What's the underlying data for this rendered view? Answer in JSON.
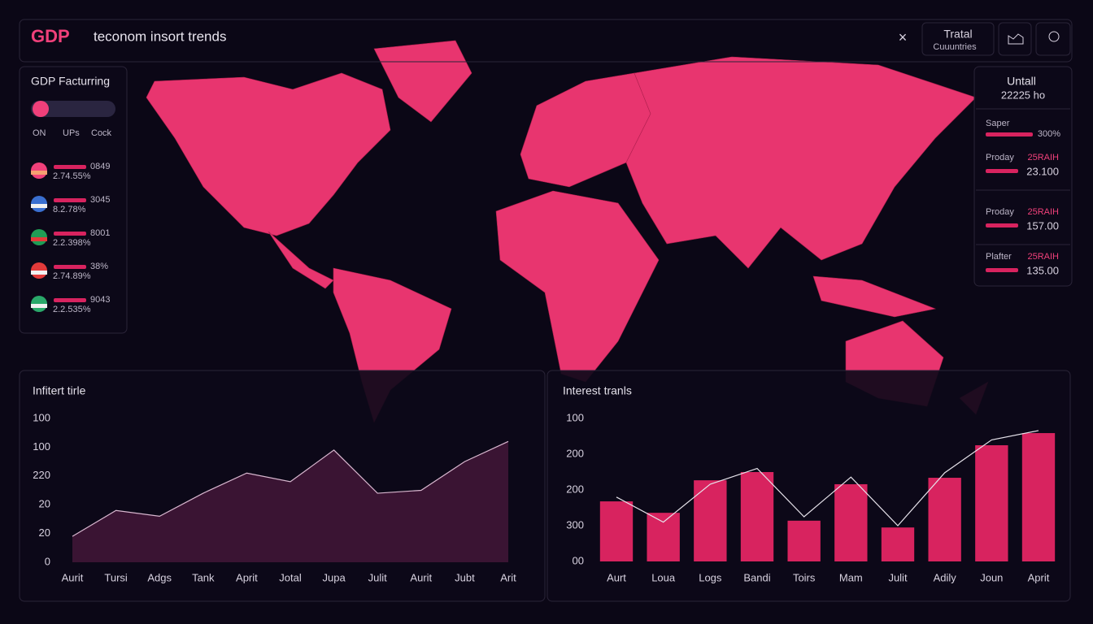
{
  "header": {
    "logo": "GDP",
    "title": "teconom insort trends",
    "button": {
      "line1": "Tratal",
      "line2": "Cuuuntries"
    }
  },
  "left_panel": {
    "title": "GDP Facturring",
    "toggles": [
      "ON",
      "UPs",
      "Cock"
    ],
    "rows": [
      {
        "value": "0849",
        "percent": "2.74.55%"
      },
      {
        "value": "3045",
        "percent": "8.2.78%"
      },
      {
        "value": "8001",
        "percent": "2.2.398%"
      },
      {
        "value": "38%",
        "percent": "2.74.89%"
      },
      {
        "value": "9043",
        "percent": "2.2.535%"
      }
    ]
  },
  "right_panel": {
    "title": "Untall",
    "total": "22225 ho",
    "rows": [
      {
        "label": "Saper",
        "value": "300%"
      },
      {
        "label": "Proday",
        "tag": "25RAIH",
        "value": "23.100"
      },
      {
        "label": "Proday",
        "tag": "25RAIH",
        "value": "157.00"
      },
      {
        "label": "Plafter",
        "tag": "25RAIH",
        "value": "135.00"
      }
    ]
  },
  "chart_data": [
    {
      "type": "area",
      "title": "Infitert tirle",
      "categories": [
        "Aurit",
        "Tursi",
        "Adgs",
        "Tank",
        "Aprit",
        "Jotal",
        "Jupa",
        "Julit",
        "Aurit",
        "Jubt",
        "Arit"
      ],
      "series": [
        {
          "color": "#d9b8d0",
          "fill": "#3a1433",
          "values": [
            0.9,
            1.8,
            1.6,
            2.4,
            3.1,
            2.8,
            3.9,
            2.4,
            2.5,
            3.5,
            4.2
          ]
        }
      ],
      "ylim": [
        0,
        5
      ],
      "yticks": [
        0,
        {
          "value": 1,
          "label": "20"
        },
        {
          "value": 2,
          "label": "20"
        },
        {
          "value": 3,
          "label": "220"
        },
        {
          "value": 4,
          "label": "100"
        },
        {
          "value": 5,
          "label": "100"
        }
      ]
    },
    {
      "type": "bar",
      "title": "Interest tranls",
      "categories": [
        "Aurt",
        "Loua",
        "Logs",
        "Bandi",
        "Toirs",
        "Mam",
        "Julit",
        "Adily",
        "Joun",
        "Aprit"
      ],
      "series": [
        {
          "type": "bar",
          "color": "#d8235f",
          "values": [
            1.68,
            1.36,
            2.27,
            2.5,
            1.14,
            2.16,
            0.95,
            2.34,
            3.25,
            3.59
          ]
        },
        {
          "type": "line",
          "color": "#e6e2ea",
          "values": [
            1.8,
            1.1,
            2.16,
            2.6,
            1.25,
            2.36,
            1.0,
            2.48,
            3.4,
            3.66
          ]
        }
      ],
      "ylim": [
        0,
        4
      ],
      "yticks": [
        {
          "value": 0,
          "label": "00"
        },
        {
          "value": 1,
          "label": "300"
        },
        {
          "value": 2,
          "label": "200"
        },
        {
          "value": 3,
          "label": "200"
        },
        {
          "value": 4,
          "label": "100"
        }
      ]
    }
  ]
}
